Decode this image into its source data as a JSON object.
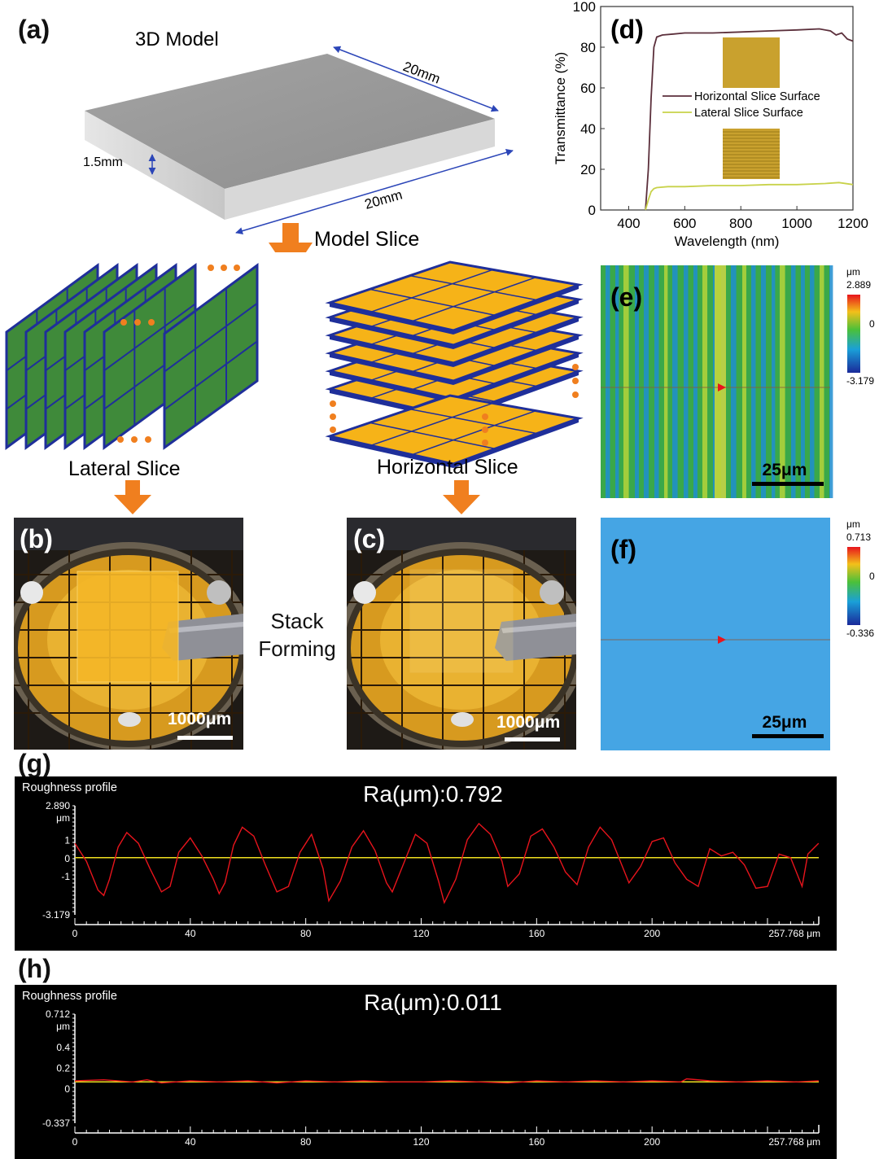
{
  "panels": {
    "a": "(a)",
    "b": "(b)",
    "c": "(c)",
    "d": "(d)",
    "e": "(e)",
    "f": "(f)",
    "g": "(g)",
    "h": "(h)"
  },
  "model": {
    "title": "3D Model",
    "dim_length": "20mm",
    "dim_width": "20mm",
    "dim_thickness": "1.5mm",
    "slice_label": "Model Slice"
  },
  "slices": {
    "lateral": "Lateral Slice",
    "horizontal": "Horizontal Slice",
    "stack_line1": "Stack",
    "stack_line2": "Forming"
  },
  "photos": {
    "scale_b": "1000μm",
    "scale_c": "1000μm"
  },
  "colors": {
    "arrow": "#f07f1f",
    "lateral_slice": "#3f8a3a",
    "horizontal_slice": "#f6b318",
    "slice_edge": "#1f2f9a",
    "horizontal_curve": "#5b2f3b",
    "lateral_curve": "#d6dd6a",
    "profile_red": "#e8141c",
    "profile_yellow": "#f0e020"
  },
  "chart_data": [
    {
      "id": "d",
      "type": "line",
      "xlabel": "Wavelength (nm)",
      "ylabel": "Transmittance (%)",
      "xlim": [
        300,
        1200
      ],
      "ylim": [
        0,
        100
      ],
      "xticks": [
        "400",
        "600",
        "800",
        "1000",
        "1200"
      ],
      "yticks": [
        "0",
        "20",
        "40",
        "60",
        "80",
        "100"
      ],
      "legend": "center",
      "series": [
        {
          "name": "Horizontal Slice Surface",
          "color": "#5b2f3b",
          "x": [
            460,
            470,
            480,
            490,
            500,
            520,
            560,
            600,
            700,
            800,
            900,
            1000,
            1080,
            1120,
            1140,
            1160,
            1180,
            1200
          ],
          "y": [
            0,
            20,
            55,
            80,
            85,
            86,
            86.5,
            87,
            87,
            87.5,
            88,
            88.5,
            89,
            88,
            86,
            87,
            84,
            83
          ]
        },
        {
          "name": "Lateral Slice Surface",
          "color": "#c8d24a",
          "x": [
            460,
            470,
            480,
            490,
            500,
            540,
            600,
            700,
            800,
            900,
            1000,
            1100,
            1150,
            1200
          ],
          "y": [
            0,
            5,
            9,
            10.5,
            11,
            11.5,
            11.5,
            12,
            12,
            12.5,
            12.5,
            13,
            13.5,
            12.5
          ]
        }
      ]
    },
    {
      "id": "e",
      "type": "heatmap",
      "colorbar_unit": "μm",
      "colorbar_max": "2.889",
      "colorbar_mid": "0",
      "colorbar_min": "-3.179",
      "scale_bar": "25μm"
    },
    {
      "id": "f",
      "type": "heatmap",
      "colorbar_unit": "μm",
      "colorbar_max": "0.713",
      "colorbar_mid": "0",
      "colorbar_min": "-0.336",
      "scale_bar": "25μm"
    },
    {
      "id": "g",
      "type": "line",
      "title": "Roughness profile",
      "annotation": "Ra(μm):0.792",
      "ylim": [
        -3.179,
        2.89
      ],
      "ytick_top": "2.890",
      "yunit": "μm",
      "yticks": [
        "1",
        "0",
        "-1"
      ],
      "ytick_bottom": "-3.179",
      "xlim": [
        0,
        257.768
      ],
      "xticks": [
        "0",
        "40",
        "80",
        "120",
        "160",
        "200"
      ],
      "xtick_end": "257.768 μm",
      "mean_line": 0,
      "series": [
        {
          "color": "#e8141c",
          "x": [
            0,
            4,
            8,
            10,
            12,
            15,
            18,
            22,
            26,
            30,
            33,
            36,
            40,
            44,
            48,
            50,
            52,
            55,
            58,
            62,
            66,
            70,
            74,
            78,
            82,
            86,
            88,
            92,
            96,
            100,
            104,
            108,
            110,
            114,
            118,
            122,
            126,
            128,
            132,
            136,
            140,
            144,
            148,
            150,
            154,
            158,
            162,
            166,
            170,
            174,
            178,
            182,
            186,
            190,
            192,
            196,
            200,
            204,
            208,
            212,
            216,
            220,
            224,
            228,
            232,
            236,
            240,
            244,
            248,
            252,
            254,
            257.7
          ],
          "y": [
            0.8,
            -0.2,
            -1.8,
            -2.1,
            -1.2,
            0.6,
            1.4,
            0.8,
            -0.6,
            -1.9,
            -1.6,
            0.3,
            1.1,
            0.1,
            -1.2,
            -2.0,
            -1.4,
            0.7,
            1.7,
            1.2,
            -0.4,
            -1.9,
            -1.6,
            0.3,
            1.3,
            -0.6,
            -2.4,
            -1.3,
            0.6,
            1.5,
            0.4,
            -1.4,
            -1.9,
            -0.3,
            1.3,
            0.8,
            -1.3,
            -2.5,
            -1.2,
            1.0,
            1.9,
            1.3,
            -0.2,
            -1.6,
            -0.9,
            1.2,
            1.6,
            0.6,
            -0.8,
            -1.5,
            0.6,
            1.7,
            1.0,
            -0.6,
            -1.4,
            -0.5,
            0.9,
            1.1,
            -0.3,
            -1.2,
            -1.6,
            0.5,
            0.1,
            0.3,
            -0.4,
            -1.7,
            -1.6,
            0.2,
            0.0,
            -1.6,
            0.2,
            0.8
          ]
        }
      ]
    },
    {
      "id": "h",
      "type": "line",
      "title": "Roughness profile",
      "annotation": "Ra(μm):0.011",
      "ylim": [
        -0.337,
        0.712
      ],
      "ytick_top": "0.712",
      "yunit": "μm",
      "yticks": [
        "0.4",
        "0.2",
        "0"
      ],
      "ytick_bottom": "-0.337",
      "xlim": [
        0,
        257.768
      ],
      "xticks": [
        "0",
        "40",
        "80",
        "120",
        "160",
        "200"
      ],
      "xtick_end": "257.768 μm",
      "mean_line": 0.06,
      "series": [
        {
          "color": "#e8141c",
          "x": [
            0,
            10,
            20,
            25,
            30,
            40,
            50,
            60,
            70,
            80,
            90,
            100,
            110,
            120,
            130,
            140,
            150,
            160,
            170,
            180,
            190,
            200,
            210,
            212,
            220,
            230,
            240,
            250,
            257.7
          ],
          "y": [
            0.07,
            0.08,
            0.06,
            0.08,
            0.05,
            0.07,
            0.06,
            0.07,
            0.05,
            0.07,
            0.06,
            0.07,
            0.06,
            0.06,
            0.07,
            0.06,
            0.05,
            0.07,
            0.06,
            0.07,
            0.06,
            0.07,
            0.06,
            0.09,
            0.07,
            0.06,
            0.07,
            0.06,
            0.07
          ]
        }
      ]
    }
  ]
}
